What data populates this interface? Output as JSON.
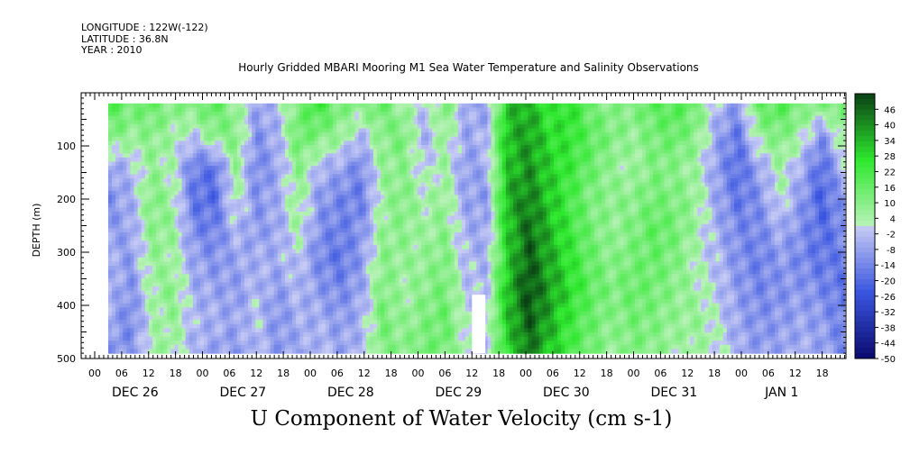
{
  "header": {
    "longitude": "LONGITUDE : 122W(-122)",
    "latitude": "LATITUDE : 36.8N",
    "year": "YEAR : 2010"
  },
  "title": "Hourly Gridded MBARI Mooring M1 Sea Water Temperature and Salinity Observations",
  "xlabel": "U Component of Water Velocity (cm s-1)",
  "ylabel": "DEPTH (m)",
  "colors": {
    "negative_low": "#0a0a6e",
    "negative_mid": "#3a55e0",
    "negative_high": "#c8ccf5",
    "positive_low": "#b9f2b9",
    "positive_mid": "#2ee82e",
    "positive_high": "#0a3f14",
    "missing": "#ffffff"
  },
  "chart_data": {
    "type": "heatmap",
    "title": "Hourly Gridded MBARI Mooring M1 Sea Water Temperature and Salinity Observations",
    "xlabel": "U Component of Water Velocity (cm s-1)",
    "ylabel": "DEPTH (m)",
    "y_ticks": [
      "100",
      "200",
      "300",
      "400",
      "500"
    ],
    "y_range": [
      500,
      0
    ],
    "x_hour_ticks": [
      "00",
      "06",
      "12",
      "18",
      "00",
      "06",
      "12",
      "18",
      "00",
      "06",
      "12",
      "18",
      "00",
      "06",
      "12",
      "18",
      "00",
      "06",
      "12",
      "18",
      "00",
      "06",
      "12",
      "18",
      "00",
      "06",
      "12",
      "18"
    ],
    "x_day_labels": [
      "DEC 26",
      "DEC 27",
      "DEC 28",
      "DEC 29",
      "DEC 30",
      "DEC 31",
      "JAN  1"
    ],
    "colorbar_labels": [
      "46",
      "40",
      "34",
      "28",
      "22",
      "16",
      "10",
      "4",
      "-2",
      "-8",
      "-14",
      "-20",
      "-26",
      "-32",
      "-38",
      "-44",
      "-50"
    ],
    "colorbar_range": [
      -50,
      52
    ],
    "data_depth_range_m": [
      20,
      490
    ],
    "data_time_range": [
      "DEC 26 03:00",
      "JAN 1 23:00"
    ],
    "field": [
      [
        18,
        12,
        14,
        8,
        10,
        16,
        6,
        -8,
        -4,
        12,
        22,
        10,
        8,
        14,
        4,
        -2,
        10,
        -6,
        -10,
        30,
        34,
        22,
        26,
        12,
        8,
        10,
        16,
        18,
        12,
        -4,
        -10,
        14,
        18,
        10,
        8,
        14
      ],
      [
        10,
        6,
        8,
        4,
        -2,
        8,
        10,
        -12,
        -6,
        14,
        10,
        6,
        -4,
        8,
        12,
        -6,
        6,
        -8,
        -4,
        32,
        36,
        26,
        24,
        16,
        10,
        6,
        12,
        14,
        8,
        -8,
        -18,
        6,
        10,
        4,
        -12,
        6
      ],
      [
        -8,
        -4,
        6,
        2,
        -16,
        -18,
        6,
        -14,
        -8,
        8,
        -4,
        -8,
        -14,
        6,
        8,
        -2,
        4,
        -10,
        -6,
        30,
        38,
        28,
        22,
        14,
        6,
        4,
        10,
        8,
        4,
        -10,
        -20,
        -8,
        4,
        -6,
        -20,
        -4
      ],
      [
        -12,
        -6,
        10,
        4,
        -18,
        -20,
        4,
        -12,
        -6,
        6,
        -10,
        -14,
        -16,
        4,
        10,
        2,
        6,
        -8,
        -10,
        34,
        40,
        30,
        20,
        10,
        8,
        8,
        12,
        10,
        6,
        -8,
        -18,
        -12,
        2,
        -10,
        -22,
        -10
      ],
      [
        -10,
        -8,
        8,
        6,
        -14,
        -16,
        -4,
        -10,
        -8,
        4,
        -12,
        -16,
        -12,
        6,
        8,
        4,
        8,
        -6,
        -8,
        30,
        44,
        32,
        22,
        12,
        6,
        10,
        16,
        12,
        4,
        -6,
        -14,
        -14,
        -6,
        -12,
        -20,
        -14
      ],
      [
        -6,
        -10,
        6,
        4,
        -8,
        -12,
        -8,
        -6,
        -6,
        -2,
        -14,
        -18,
        -10,
        8,
        6,
        6,
        10,
        -4,
        -6,
        28,
        46,
        34,
        24,
        14,
        8,
        12,
        14,
        10,
        2,
        -4,
        -12,
        -16,
        -10,
        -14,
        -18,
        -16
      ],
      [
        -4,
        -12,
        4,
        8,
        -6,
        -8,
        -10,
        -4,
        -10,
        -4,
        -10,
        -14,
        -8,
        10,
        4,
        8,
        12,
        -2,
        -4,
        32,
        48,
        36,
        26,
        16,
        10,
        14,
        12,
        8,
        4,
        -2,
        -10,
        -14,
        -12,
        -10,
        -14,
        -18
      ],
      [
        -8,
        -14,
        2,
        6,
        -4,
        -6,
        -8,
        -2,
        -12,
        -6,
        -6,
        -10,
        -6,
        12,
        6,
        10,
        14,
        0,
        -2,
        30,
        46,
        34,
        22,
        14,
        8,
        12,
        10,
        6,
        6,
        0,
        -8,
        -12,
        -10,
        -8,
        -10,
        -16
      ],
      [
        -10,
        -12,
        4,
        4,
        -6,
        -8,
        -10,
        -4,
        -10,
        -8,
        -4,
        -8,
        -4,
        10,
        8,
        12,
        12,
        2,
        -4,
        26,
        42,
        30,
        20,
        12,
        6,
        10,
        8,
        4,
        4,
        2,
        -6,
        -10,
        -8,
        -6,
        -8,
        -14
      ]
    ],
    "missing_region": {
      "time": "DEC 29 12:00-15:00",
      "depth_m": [
        380,
        490
      ]
    }
  }
}
